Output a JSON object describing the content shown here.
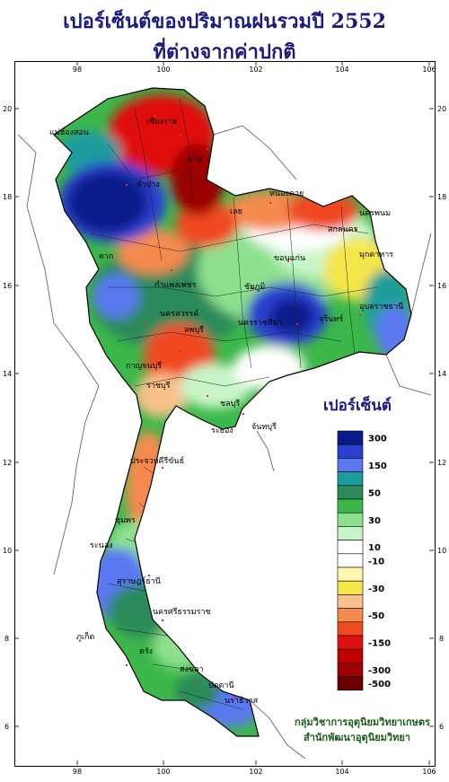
{
  "title": {
    "line1": "เปอร์เซ็นต์ของปริมาณฝนรวมปี 2552",
    "line2": "ที่ต่างจากค่าปกติ"
  },
  "axes": {
    "lon_ticks": [
      "98",
      "100",
      "102",
      "104",
      "106"
    ],
    "lat_ticks": [
      "20",
      "18",
      "16",
      "14",
      "12",
      "10",
      "8",
      "6"
    ]
  },
  "legend": {
    "title": "เปอร์เซ็นต์",
    "classes": [
      {
        "label": "300",
        "color": "#0a1a8c"
      },
      {
        "label": "",
        "color": "#2a3fd0"
      },
      {
        "label": "150",
        "color": "#5a78f0"
      },
      {
        "label": "",
        "color": "#1a9c9c"
      },
      {
        "label": "50",
        "color": "#2c8a5a"
      },
      {
        "label": "",
        "color": "#3cb84a"
      },
      {
        "label": "30",
        "color": "#8ee08e"
      },
      {
        "label": "",
        "color": "#c8f5c8"
      },
      {
        "label": "10",
        "color": "#ffffff"
      },
      {
        "label": "-10",
        "color": "#ffffff"
      },
      {
        "label": "",
        "color": "#fff7b0"
      },
      {
        "label": "-30",
        "color": "#f5e64a"
      },
      {
        "label": "",
        "color": "#f8c08a"
      },
      {
        "label": "-50",
        "color": "#f58a50"
      },
      {
        "label": "",
        "color": "#f04a20"
      },
      {
        "label": "-150",
        "color": "#e01010"
      },
      {
        "label": "",
        "color": "#c00000"
      },
      {
        "label": "-300",
        "color": "#9c0000"
      },
      {
        "label": "-500",
        "color": "#6a0000"
      }
    ]
  },
  "credits": {
    "line1": "กลุ่มวิชาการอุตุนิยมวิทยาเกษตร",
    "line2": "สำนักพัฒนาอุตุนิยมวิทยา"
  },
  "places": [
    "เชียงราย",
    "แม่ฮ่องสอน",
    "น่าน",
    "ลำปาง",
    "เลย",
    "หนองคาย",
    "นครพนม",
    "สกลนคร",
    "มุกดาหาร",
    "ขอนแก่น",
    "ชัยภูมิ",
    "อุบลราชธานี",
    "นครราชสีมา",
    "สุรินทร์",
    "ตาก",
    "กำแพงเพชร",
    "นครสวรรค์",
    "ลพบุรี",
    "กาญจนบุรี",
    "ราชบุรี",
    "ชลบุรี",
    "ระยอง",
    "จันทบุรี",
    "ประจวบคีรีขันธ์",
    "ชุมพร",
    "ระนอง",
    "สุราษฎร์ธานี",
    "นครศรีธรรมราช",
    "ภูเก็ต",
    "ตรัง",
    "สงขลา",
    "ปัตตานี",
    "นราธิวาส"
  ]
}
